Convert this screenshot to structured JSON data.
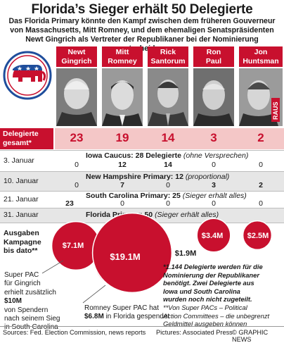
{
  "title": "Florida’s Sieger erhält 50 Delegierte",
  "intro": [
    "Das Florida Primary könnte den Kampf zwischen dem früheren Gouverneur",
    "von Massachusetts, Mitt Romney, und dem ehemaligen Senatspräsidenten",
    "Newt Gingrich als Vertreter der Republikaner bei der Nominierung entscheiden"
  ],
  "candidates": [
    {
      "name": [
        "Newt",
        "Gingrich"
      ],
      "total": "23"
    },
    {
      "name": [
        "Mitt",
        "Romney"
      ],
      "total": "19"
    },
    {
      "name": [
        "Rick",
        "Santorum"
      ],
      "total": "14"
    },
    {
      "name": [
        "Ron",
        "Paul"
      ],
      "total": "3"
    },
    {
      "name": [
        "Jon",
        "Huntsman"
      ],
      "total": "2",
      "badge": "RAUS"
    }
  ],
  "delegates_label": [
    "Delegierte",
    "gesamt*"
  ],
  "events": [
    {
      "date": "3. Januar",
      "name": "Iowa Caucus:",
      "count": "28 Delegierte",
      "note": "(ohne Versprechen)",
      "values": [
        "0",
        "12",
        "14",
        "0",
        "0"
      ]
    },
    {
      "date": "10. Januar",
      "name": "New Hampshire Primary:",
      "count": "12",
      "note": "(proportional)",
      "values": [
        "0",
        "7",
        "0",
        "3",
        "2"
      ]
    },
    {
      "date": "21. Januar",
      "name": "South Carolina Primary:",
      "count": "25",
      "note": "(Sieger erhält alles)",
      "values": [
        "23",
        "0",
        "0",
        "0",
        "0"
      ]
    },
    {
      "date": "31. Januar",
      "name": "Florida Primary:",
      "count": "50",
      "note": "(Sieger erhält alles)",
      "values": []
    }
  ],
  "spending_label": [
    "Ausgaben",
    "Kampagne",
    "bis dato**"
  ],
  "spending": [
    {
      "candidate": "Newt Gingrich",
      "amount": "$7.1M",
      "value_m": 7.1
    },
    {
      "candidate": "Newt Gingrich Super PAC",
      "value_m": 10
    },
    {
      "candidate": "Mitt Romney",
      "amount": "$19.1M",
      "value_m": 19.1
    },
    {
      "candidate": "Rick Santorum",
      "amount": "$1.9M",
      "value_m": 1.9
    },
    {
      "candidate": "Ron Paul",
      "amount": "$3.4M",
      "value_m": 3.4
    },
    {
      "candidate": "Jon Huntsman",
      "amount": "$2.5M",
      "value_m": 2.5
    },
    {
      "candidate": "Mitt Romney Super PAC",
      "value_m": 6.8
    }
  ],
  "gingrich_pac_note": [
    "Super PAC",
    "für Gingrich",
    "erhielt zusätzlich",
    "$10M",
    "von Spendern",
    "nach seinem Sieg",
    "in South Carolina"
  ],
  "romney_pac_note": [
    "Romney Super PAC hat",
    "$6.8M",
    "in Florida gespendet"
  ],
  "footnotes": {
    "main": [
      "*1.144 Delegierte werden für die",
      "Nominierung der Republikaner",
      "benötigt. Zwei Delegierte aus",
      "Iowa und South Carolina",
      "wurden noch nicht zugeteilt."
    ],
    "sub": [
      "**Von Super PACs – Political",
      "Action Committees – die unbegrenzt",
      "Geldmittel ausgeben können"
    ]
  },
  "footer": {
    "sources": "Sources: Fed. Election Commission, news reports",
    "pictures": "Pictures: Associated Press",
    "credit": "© GRAPHIC NEWS"
  },
  "colors": {
    "red": "#c8102e",
    "pink": "#f4c7c7",
    "grey": "#e6e6e6",
    "gop_blue": "#1f4e9c"
  },
  "chart_data": {
    "type": "table",
    "title": "Florida’s Sieger erhält 50 Delegierte",
    "categories": [
      "Newt Gingrich",
      "Mitt Romney",
      "Rick Santorum",
      "Ron Paul",
      "Jon Huntsman"
    ],
    "series": [
      {
        "name": "Delegierte gesamt*",
        "values": [
          23,
          19,
          14,
          3,
          2
        ]
      },
      {
        "name": "Iowa Caucus",
        "values": [
          0,
          12,
          14,
          0,
          0
        ]
      },
      {
        "name": "New Hampshire Primary",
        "values": [
          0,
          7,
          0,
          3,
          2
        ]
      },
      {
        "name": "South Carolina Primary",
        "values": [
          23,
          0,
          0,
          0,
          0
        ]
      },
      {
        "name": "Ausgaben Kampagne bis dato**",
        "values": [
          7.1,
          19.1,
          1.9,
          3.4,
          2.5
        ]
      }
    ]
  }
}
